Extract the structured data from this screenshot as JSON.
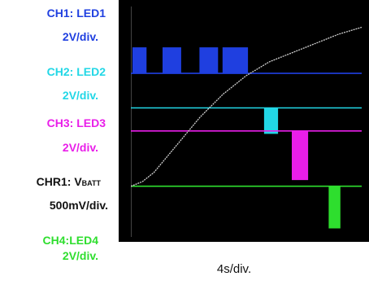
{
  "channels": [
    {
      "name": "CH1: LED1",
      "scale": "2V/div.",
      "color": "#1f3fe0"
    },
    {
      "name": "CH2: LED2",
      "scale": "2V/div.",
      "color": "#22d7e6"
    },
    {
      "name": "CH3: LED3",
      "scale": "2V/div.",
      "color": "#e91ee9"
    },
    {
      "name_main": "CHR1: V",
      "name_sub": "BATT",
      "scale": "500mV/div.",
      "color": "#111111"
    },
    {
      "name": "CH4:LED4",
      "scale": "2V/div.",
      "color": "#2ede2e"
    }
  ],
  "time_scale": "4s/div.",
  "chart_data": {
    "type": "line",
    "title": "",
    "xlabel": "4s/div.",
    "x_unit": "div",
    "xlim": [
      0,
      10
    ],
    "series": [
      {
        "name": "CH1: LED1",
        "color": "#1f3fe0",
        "baseline_div": 7.1,
        "high_div": 8.2,
        "bursts": [
          [
            0.1,
            0.7
          ],
          [
            1.4,
            2.2
          ],
          [
            3.0,
            3.8
          ],
          [
            4.0,
            5.1
          ]
        ]
      },
      {
        "name": "CH2: LED2",
        "color": "#22d7e6",
        "baseline_div": 5.6,
        "high_div": 4.5,
        "bursts": [
          [
            5.8,
            6.4
          ]
        ]
      },
      {
        "name": "CH3: LED3",
        "color": "#e91ee9",
        "baseline_div": 4.6,
        "high_div": 2.5,
        "bursts": [
          [
            7.0,
            7.7
          ]
        ]
      },
      {
        "name": "CH4:LED4",
        "color": "#2ede2e",
        "baseline_div": 2.2,
        "high_div": 0.4,
        "bursts": [
          [
            8.6,
            9.1
          ]
        ]
      },
      {
        "name": "CHR1: VBATT",
        "color": "#d0d0d0",
        "x": [
          0,
          0.5,
          1,
          2,
          3,
          4,
          5,
          6,
          7,
          8,
          9,
          10
        ],
        "y": [
          2.2,
          2.4,
          2.8,
          4.0,
          5.2,
          6.2,
          7.0,
          7.6,
          8.0,
          8.4,
          8.8,
          9.1
        ]
      }
    ]
  }
}
